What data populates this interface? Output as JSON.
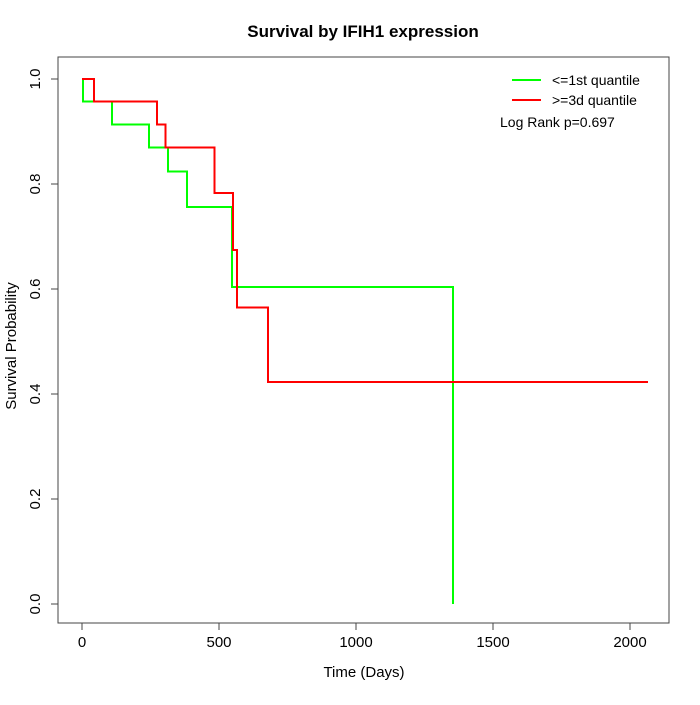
{
  "page": {
    "background_color": "#ffffff",
    "axis_color": "#444444",
    "text_color": "#000000"
  },
  "chart_data": {
    "type": "line",
    "subtype": "kaplan-meier-step",
    "title": "Survival by IFIH1 expression",
    "xlabel": "Time (Days)",
    "ylabel": "Survival Probability",
    "x_ticks": [
      "0",
      "500",
      "1000",
      "1500",
      "2000"
    ],
    "y_ticks": [
      "0.0",
      "0.2",
      "0.4",
      "0.6",
      "0.8",
      "1.0"
    ],
    "x_range_days": [
      0,
      2070
    ],
    "y_range": [
      0.0,
      1.0
    ],
    "grid": false,
    "legend_position": "top-right",
    "annotation": "Log Rank p=0.697",
    "series": [
      {
        "name": "<=1st quantile",
        "color": "#00ff00",
        "end_time": 1354,
        "steps": [
          [
            0,
            1.0
          ],
          [
            4,
            0.957
          ],
          [
            110,
            0.913
          ],
          [
            245,
            0.87
          ],
          [
            314,
            0.824
          ],
          [
            383,
            0.756
          ],
          [
            548,
            0.604
          ],
          [
            1354,
            0.0
          ]
        ]
      },
      {
        "name": ">=3d quantile",
        "color": "#ff0000",
        "end_time": 2066,
        "steps": [
          [
            0,
            1.0
          ],
          [
            44,
            0.957
          ],
          [
            274,
            0.913
          ],
          [
            304,
            0.87
          ],
          [
            483,
            0.783
          ],
          [
            551,
            0.674
          ],
          [
            565,
            0.565
          ],
          [
            679,
            0.423
          ]
        ]
      }
    ]
  }
}
